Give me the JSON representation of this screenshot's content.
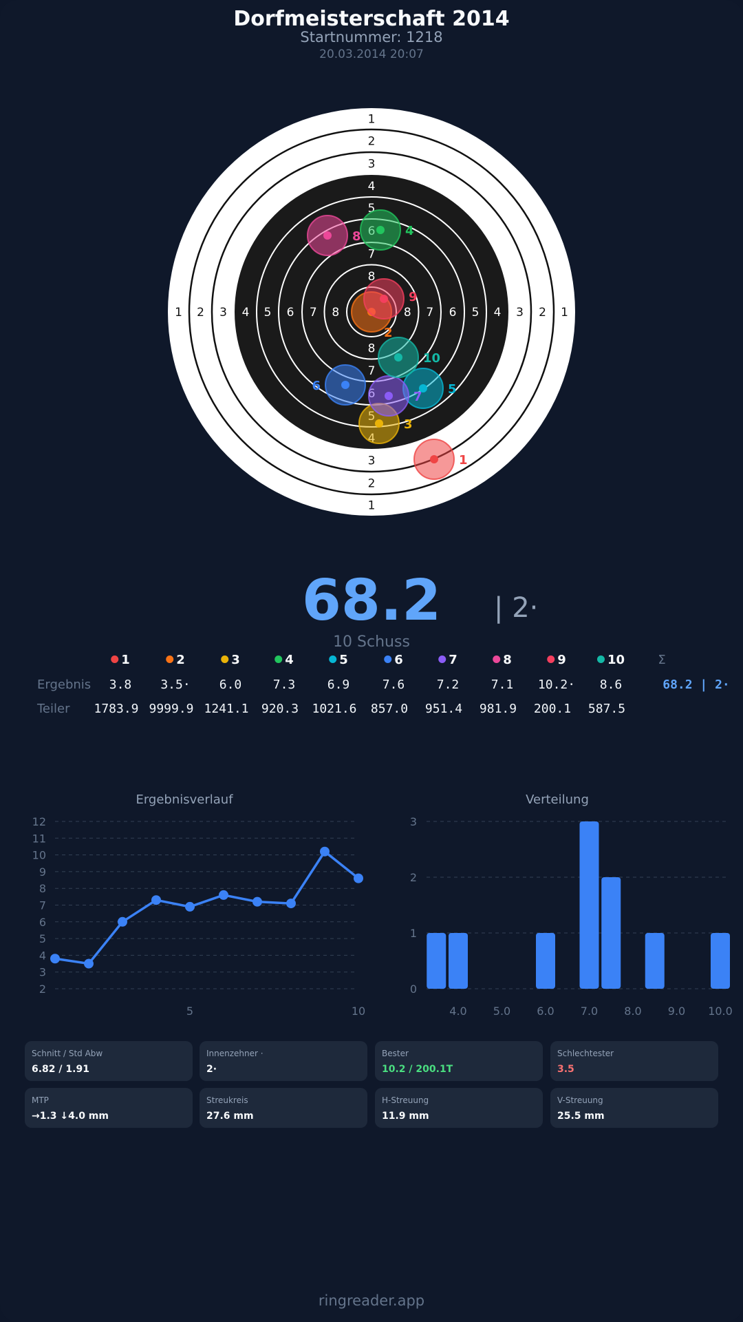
{
  "header": {
    "title": "Dorfmeisterschaft 2014",
    "subtitle": "Startnummer: 1218",
    "datetime": "20.03.2014 20:07"
  },
  "target": {
    "ring_labels": [
      "1",
      "2",
      "3",
      "4",
      "5",
      "6",
      "7",
      "8"
    ],
    "shots": [
      {
        "label": "1",
        "color": "#ef4444"
      },
      {
        "label": "2",
        "color": "#f97316"
      },
      {
        "label": "3",
        "color": "#eab308"
      },
      {
        "label": "4",
        "color": "#22c55e"
      },
      {
        "label": "5",
        "color": "#06b6d4"
      },
      {
        "label": "6",
        "color": "#3b82f6"
      },
      {
        "label": "7",
        "color": "#8b5cf6"
      },
      {
        "label": "8",
        "color": "#ec4899"
      },
      {
        "label": "9",
        "color": "#f43f5e"
      },
      {
        "label": "10",
        "color": "#14b8a6"
      }
    ]
  },
  "summary": {
    "total": "68.2",
    "inner_tens": "| 2·",
    "shot_count": "10 Schuss"
  },
  "table": {
    "sum_header": "Σ",
    "row_labels": {
      "result": "Ergebnis",
      "divisor": "Teiler"
    },
    "results": [
      "3.8",
      "3.5·",
      "6.0",
      "7.3",
      "6.9",
      "7.6",
      "7.2",
      "7.1",
      "10.2·",
      "8.6"
    ],
    "result_sum": "68.2 | 2·",
    "divisors": [
      "1783.9",
      "9999.9",
      "1241.1",
      "920.3",
      "1021.6",
      "857.0",
      "951.4",
      "981.9",
      "200.1",
      "587.5"
    ]
  },
  "chart_data": [
    {
      "type": "line",
      "title": "Ergebnisverlauf",
      "x": [
        1,
        2,
        3,
        4,
        5,
        6,
        7,
        8,
        9,
        10
      ],
      "values": [
        3.8,
        3.5,
        6.0,
        7.3,
        6.9,
        7.6,
        7.2,
        7.1,
        10.2,
        8.6
      ],
      "ylim": [
        2,
        12
      ],
      "yticks": [
        "2",
        "3",
        "4",
        "5",
        "6",
        "7",
        "8",
        "9",
        "10",
        "11",
        "12"
      ],
      "xticks": [
        "5",
        "10"
      ],
      "grid": true,
      "color": "#3b82f6"
    },
    {
      "type": "bar",
      "title": "Verteilung",
      "categories": [
        3.5,
        4.0,
        6.0,
        7.0,
        7.5,
        8.5,
        10.0
      ],
      "values": [
        1,
        1,
        1,
        3,
        2,
        1,
        1
      ],
      "ylim": [
        0,
        3
      ],
      "yticks": [
        "0",
        "1",
        "2",
        "3"
      ],
      "xticks": [
        "4.0",
        "5.0",
        "6.0",
        "7.0",
        "8.0",
        "9.0",
        "10.0"
      ],
      "grid": true,
      "color": "#3b82f6"
    }
  ],
  "stats": [
    {
      "label": "Schnitt / Std Abw",
      "value": "6.82 / 1.91",
      "color": "#f8fafc"
    },
    {
      "label": "Innenzehner ·",
      "value": "2·",
      "color": "#f8fafc"
    },
    {
      "label": "Bester",
      "value": "10.2 / 200.1T",
      "color": "#4ade80"
    },
    {
      "label": "Schlechtester",
      "value": "3.5",
      "color": "#f87171"
    },
    {
      "label": "MTP",
      "value": "→1.3 ↓4.0 mm",
      "color": "#f8fafc"
    },
    {
      "label": "Streukreis",
      "value": "27.6 mm",
      "color": "#f8fafc"
    },
    {
      "label": "H-Streuung",
      "value": "11.9 mm",
      "color": "#f8fafc"
    },
    {
      "label": "V-Streuung",
      "value": "25.5 mm",
      "color": "#f8fafc"
    }
  ],
  "footer": "ringreader.app"
}
